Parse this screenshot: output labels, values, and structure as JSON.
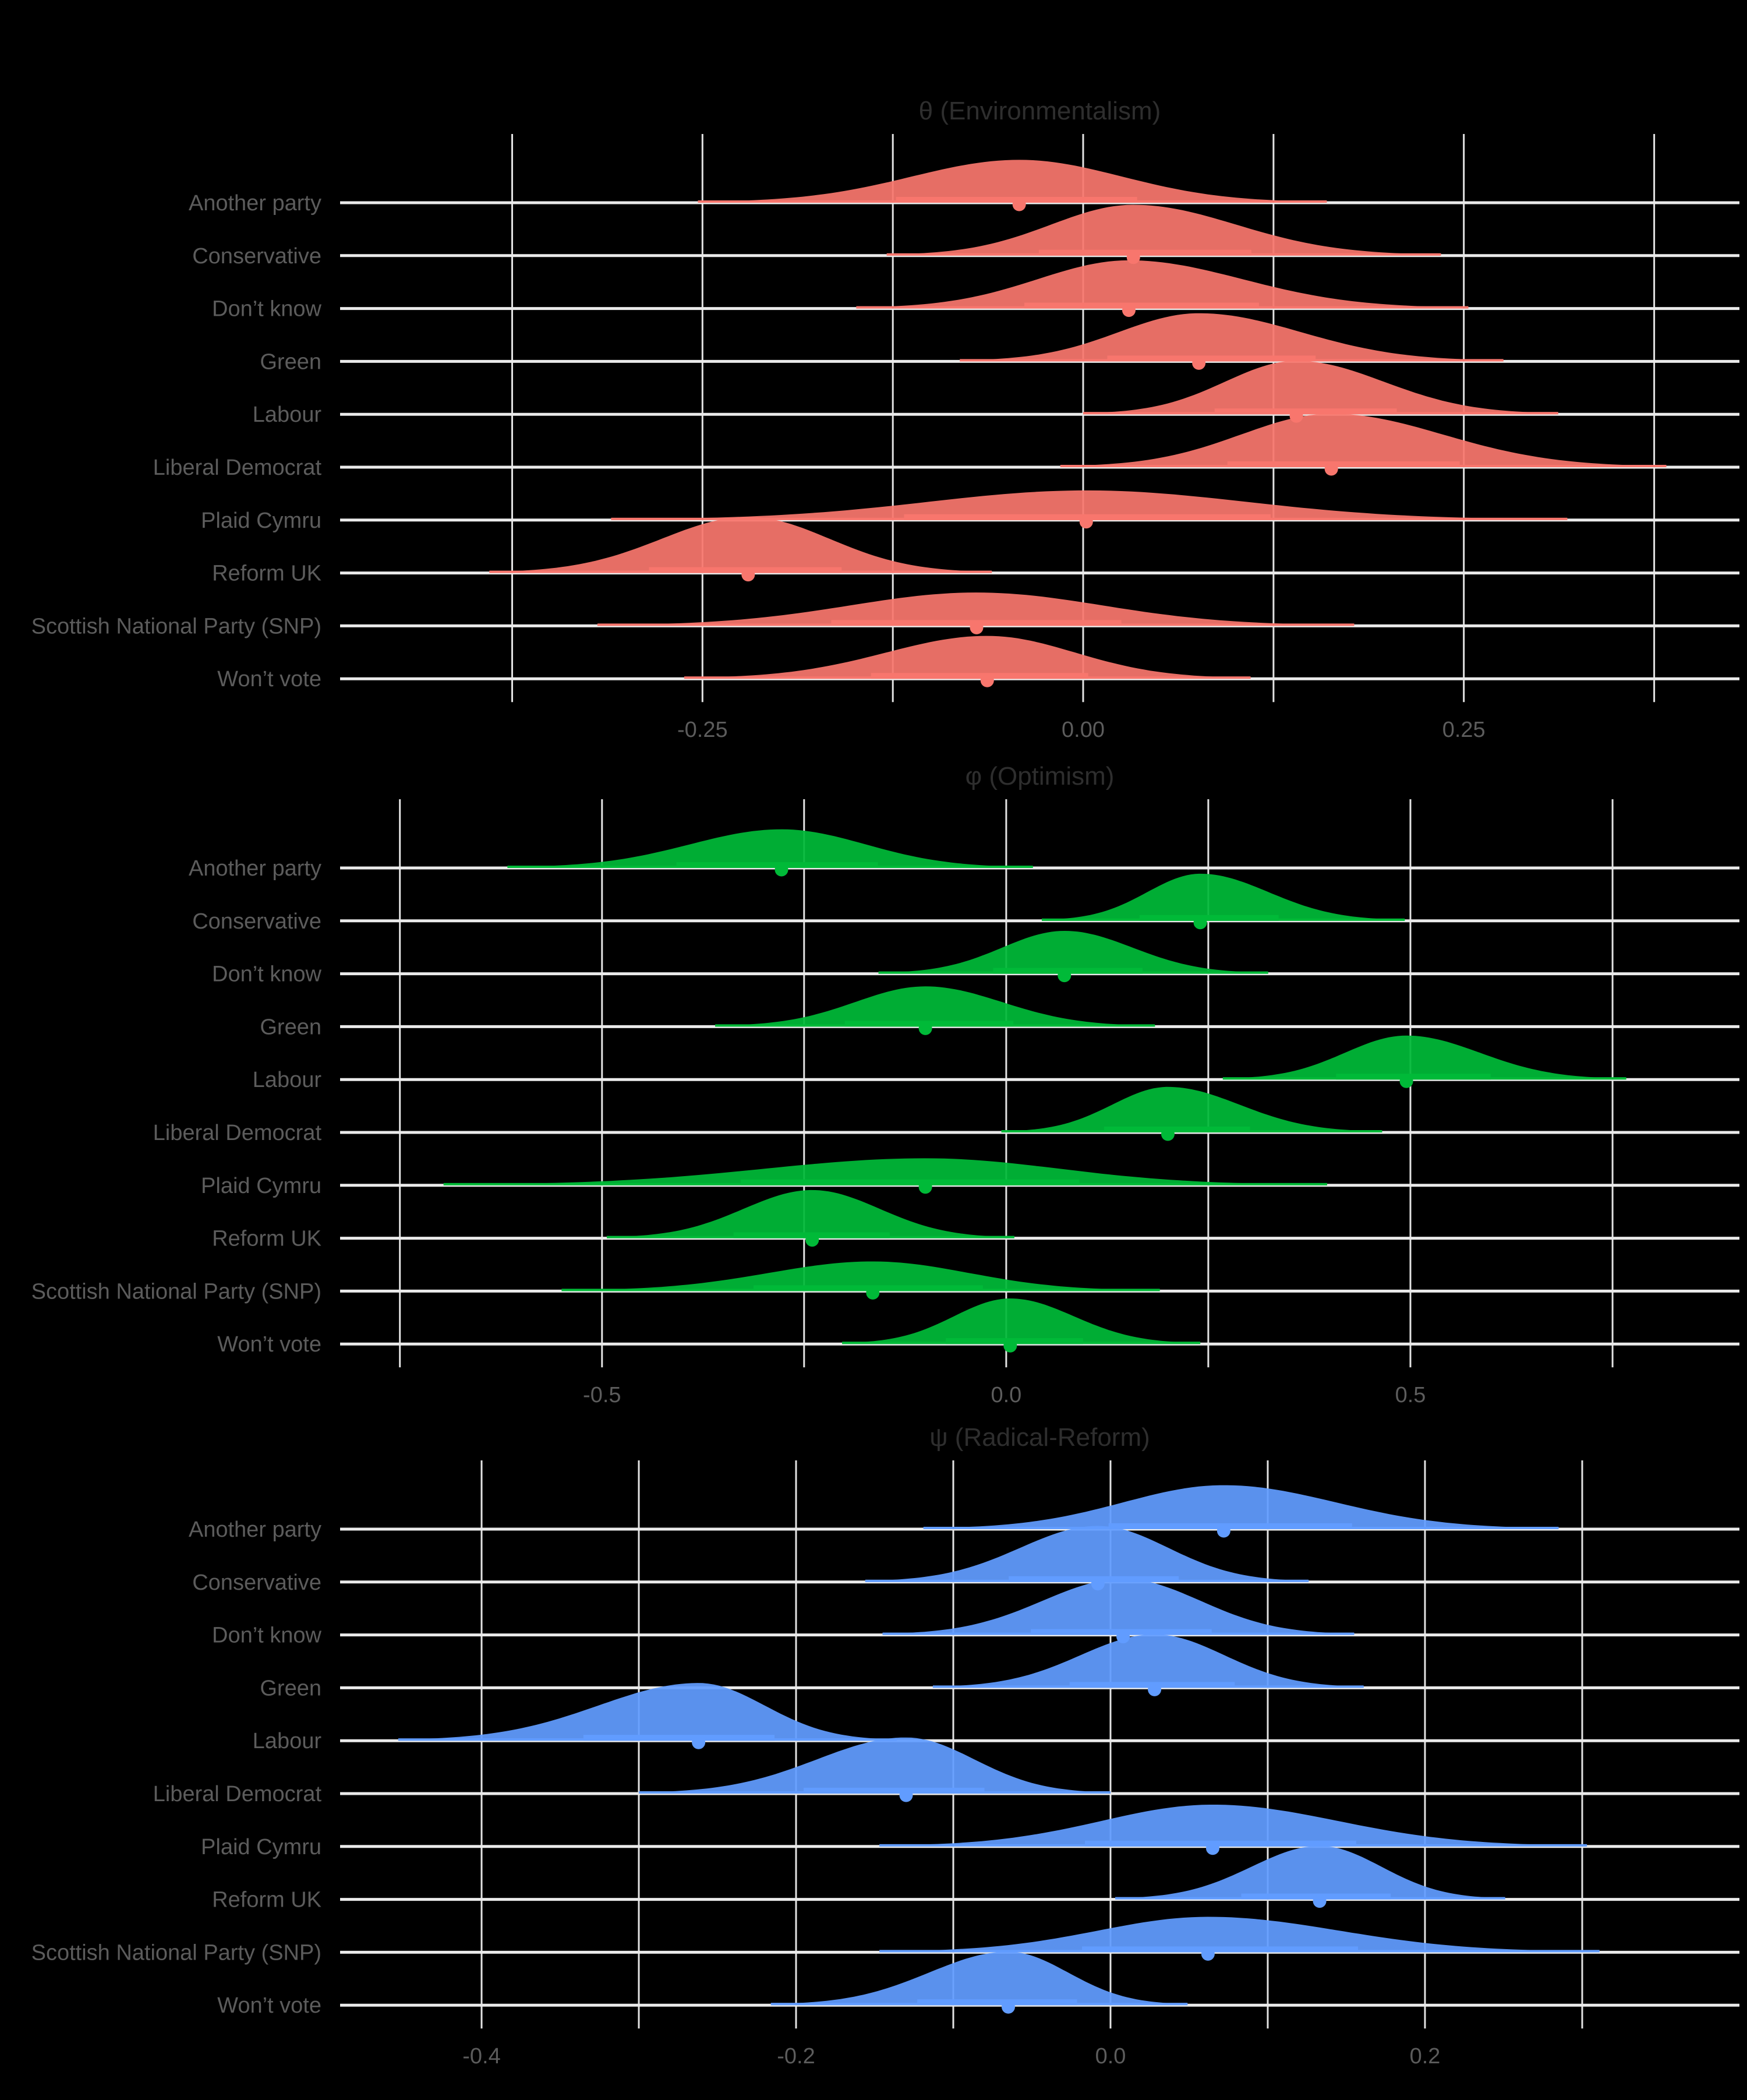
{
  "figure": {
    "background": "#000000",
    "gridline_color": "#E3E3E3",
    "baseline_color": "#EAEAEA",
    "axis_text_color": "#5C5C5C",
    "title_color": "#2E2E2E"
  },
  "categories": [
    "Another party",
    "Conservative",
    "Don’t know",
    "Green",
    "Labour",
    "Liberal Democrat",
    "Plaid Cymru",
    "Reform UK",
    "Scottish National Party (SNP)",
    "Won’t vote"
  ],
  "chart_data": [
    {
      "type": "area",
      "subtype": "ridgeline-density",
      "title": "θ (Environmentalism)",
      "color": "#F8766D",
      "xlim": [
        -0.488,
        0.431
      ],
      "xticks": [
        -0.25,
        0.0,
        0.25
      ],
      "xtick_labels": [
        "-0.25",
        "0.00",
        "0.25"
      ],
      "gridlines": [
        -0.375,
        -0.25,
        -0.125,
        0,
        0.125,
        0.25,
        0.375
      ],
      "grid": true,
      "legend": "none",
      "rows": [
        {
          "category": "Another party",
          "median": -0.042,
          "range": [
            -0.253,
            0.16
          ],
          "height": 0.8
        },
        {
          "category": "Conservative",
          "median": 0.033,
          "range": [
            -0.129,
            0.235
          ],
          "height": 0.95
        },
        {
          "category": "Don’t know",
          "median": 0.03,
          "range": [
            -0.149,
            0.253
          ],
          "height": 0.9
        },
        {
          "category": "Green",
          "median": 0.076,
          "range": [
            -0.081,
            0.276
          ],
          "height": 0.9
        },
        {
          "category": "Labour",
          "median": 0.14,
          "range": [
            0.0,
            0.312
          ],
          "height": 1.0
        },
        {
          "category": "Liberal Democrat",
          "median": 0.163,
          "range": [
            -0.015,
            0.383
          ],
          "height": 1.0
        },
        {
          "category": "Plaid Cymru",
          "median": 0.002,
          "range": [
            -0.31,
            0.318
          ],
          "height": 0.55
        },
        {
          "category": "Reform UK",
          "median": -0.22,
          "range": [
            -0.39,
            -0.06
          ],
          "height": 1.05
        },
        {
          "category": "Scottish National Party (SNP)",
          "median": -0.07,
          "range": [
            -0.319,
            0.178
          ],
          "height": 0.62
        },
        {
          "category": "Won’t vote",
          "median": -0.063,
          "range": [
            -0.262,
            0.11
          ],
          "height": 0.8
        }
      ]
    },
    {
      "type": "area",
      "subtype": "ridgeline-density",
      "title": "φ (Optimism)",
      "color": "#00BA38",
      "xlim": [
        -0.824,
        0.907
      ],
      "xticks": [
        -0.5,
        0.0,
        0.5
      ],
      "xtick_labels": [
        "-0.5",
        "0.0",
        "0.5"
      ],
      "gridlines": [
        -0.75,
        -0.5,
        -0.25,
        0,
        0.25,
        0.5,
        0.75
      ],
      "grid": true,
      "legend": "none",
      "rows": [
        {
          "category": "Another party",
          "median": -0.278,
          "range": [
            -0.617,
            0.033
          ],
          "height": 0.72
        },
        {
          "category": "Conservative",
          "median": 0.24,
          "range": [
            0.044,
            0.493
          ],
          "height": 0.88
        },
        {
          "category": "Don’t know",
          "median": 0.072,
          "range": [
            -0.158,
            0.324
          ],
          "height": 0.8
        },
        {
          "category": "Green",
          "median": -0.1,
          "range": [
            -0.36,
            0.184
          ],
          "height": 0.75
        },
        {
          "category": "Labour",
          "median": 0.495,
          "range": [
            0.268,
            0.767
          ],
          "height": 0.82
        },
        {
          "category": "Liberal Democrat",
          "median": 0.2,
          "range": [
            -0.006,
            0.465
          ],
          "height": 0.85
        },
        {
          "category": "Plaid Cymru",
          "median": -0.1,
          "range": [
            -0.696,
            0.397
          ],
          "height": 0.5
        },
        {
          "category": "Reform UK",
          "median": -0.24,
          "range": [
            -0.494,
            0.01
          ],
          "height": 0.9
        },
        {
          "category": "Scottish National Party (SNP)",
          "median": -0.165,
          "range": [
            -0.55,
            0.19
          ],
          "height": 0.55
        },
        {
          "category": "Won’t vote",
          "median": 0.005,
          "range": [
            -0.203,
            0.24
          ],
          "height": 0.85
        }
      ]
    },
    {
      "type": "area",
      "subtype": "ridgeline-density",
      "title": "ψ (Radical-Reform)",
      "color": "#619CFF",
      "xlim": [
        -0.49,
        0.4
      ],
      "xticks": [
        -0.4,
        -0.2,
        0.0,
        0.2
      ],
      "xtick_labels": [
        "-0.4",
        "-0.2",
        "0.0",
        "0.2"
      ],
      "gridlines": [
        -0.4,
        -0.3,
        -0.2,
        -0.1,
        0,
        0.1,
        0.2,
        0.3
      ],
      "grid": true,
      "legend": "none",
      "rows": [
        {
          "category": "Another party",
          "median": 0.072,
          "range": [
            -0.119,
            0.285
          ],
          "height": 0.82
        },
        {
          "category": "Conservative",
          "median": -0.008,
          "range": [
            -0.156,
            0.126
          ],
          "height": 1.05
        },
        {
          "category": "Don’t know",
          "median": 0.008,
          "range": [
            -0.145,
            0.155
          ],
          "height": 1.05
        },
        {
          "category": "Green",
          "median": 0.028,
          "range": [
            -0.113,
            0.161
          ],
          "height": 1.0
        },
        {
          "category": "Labour",
          "median": -0.262,
          "range": [
            -0.453,
            -0.136
          ],
          "height": 1.08
        },
        {
          "category": "Liberal Democrat",
          "median": -0.13,
          "range": [
            -0.3,
            0.0
          ],
          "height": 1.05
        },
        {
          "category": "Plaid Cymru",
          "median": 0.065,
          "range": [
            -0.147,
            0.303
          ],
          "height": 0.78
        },
        {
          "category": "Reform UK",
          "median": 0.133,
          "range": [
            0.003,
            0.251
          ],
          "height": 1.0
        },
        {
          "category": "Scottish National Party (SNP)",
          "median": 0.062,
          "range": [
            -0.147,
            0.311
          ],
          "height": 0.66
        },
        {
          "category": "Won’t vote",
          "median": -0.065,
          "range": [
            -0.216,
            0.049
          ],
          "height": 1.0
        }
      ]
    }
  ]
}
